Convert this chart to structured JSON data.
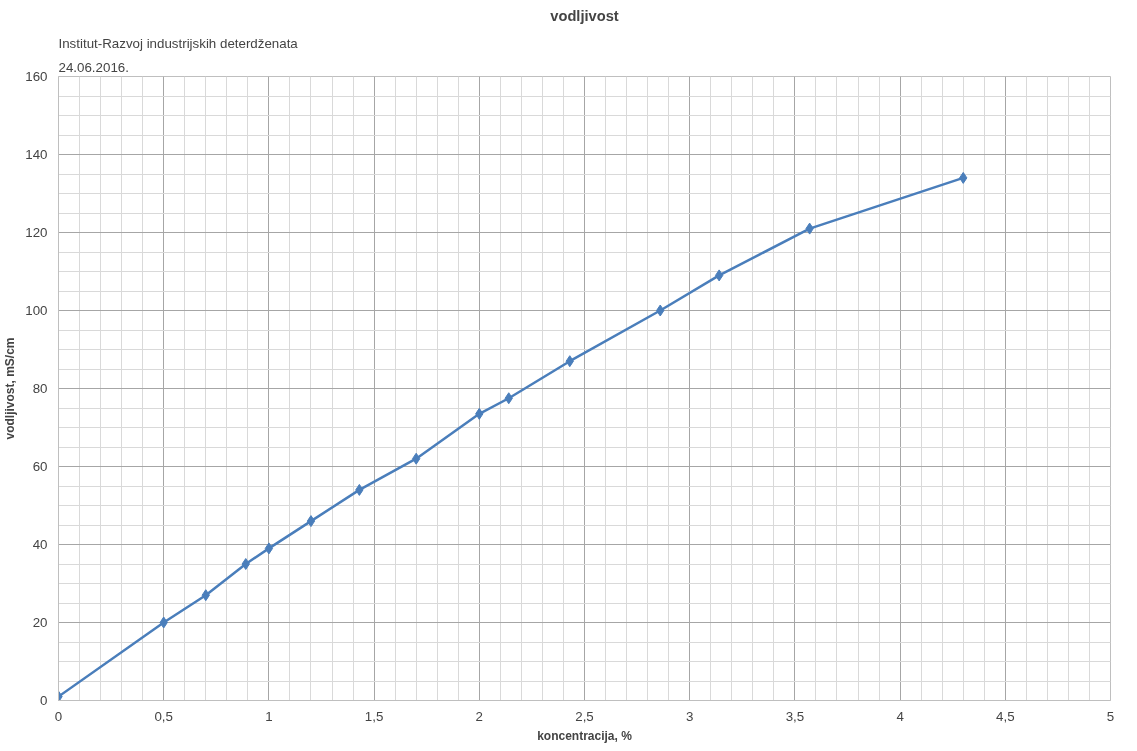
{
  "chart_data": {
    "type": "line",
    "title": "vodljivost",
    "xlabel": "koncentracija, %",
    "ylabel": "vodljivost, mS/cm",
    "annotations": [
      "Institut-Razvoj industrijskih deterdženata",
      "24.06.2016."
    ],
    "x": [
      0,
      0.5,
      0.7,
      0.89,
      1.0,
      1.2,
      1.43,
      1.7,
      2.0,
      2.14,
      2.43,
      2.86,
      3.14,
      3.57,
      4.3
    ],
    "series": [
      {
        "color": "#4a7ebb",
        "values": [
          1,
          20,
          27,
          35,
          39,
          46,
          54,
          62,
          73.5,
          77.5,
          87,
          100,
          109,
          121,
          134
        ]
      }
    ],
    "xlim": [
      0,
      5
    ],
    "ylim": [
      0,
      160
    ],
    "xticks": [
      0,
      {
        "value": 0.5,
        "label": "0,5"
      },
      1,
      {
        "value": 1.5,
        "label": "1,5"
      },
      2,
      {
        "value": 2.5,
        "label": "2,5"
      },
      3,
      {
        "value": 3.5,
        "label": "3,5"
      },
      4,
      {
        "value": 4.5,
        "label": "4,5"
      },
      5
    ],
    "yticks": [
      0,
      20,
      40,
      60,
      80,
      100,
      120,
      140,
      160
    ],
    "grid": true,
    "marker": "diamond",
    "line_style": "solid"
  }
}
